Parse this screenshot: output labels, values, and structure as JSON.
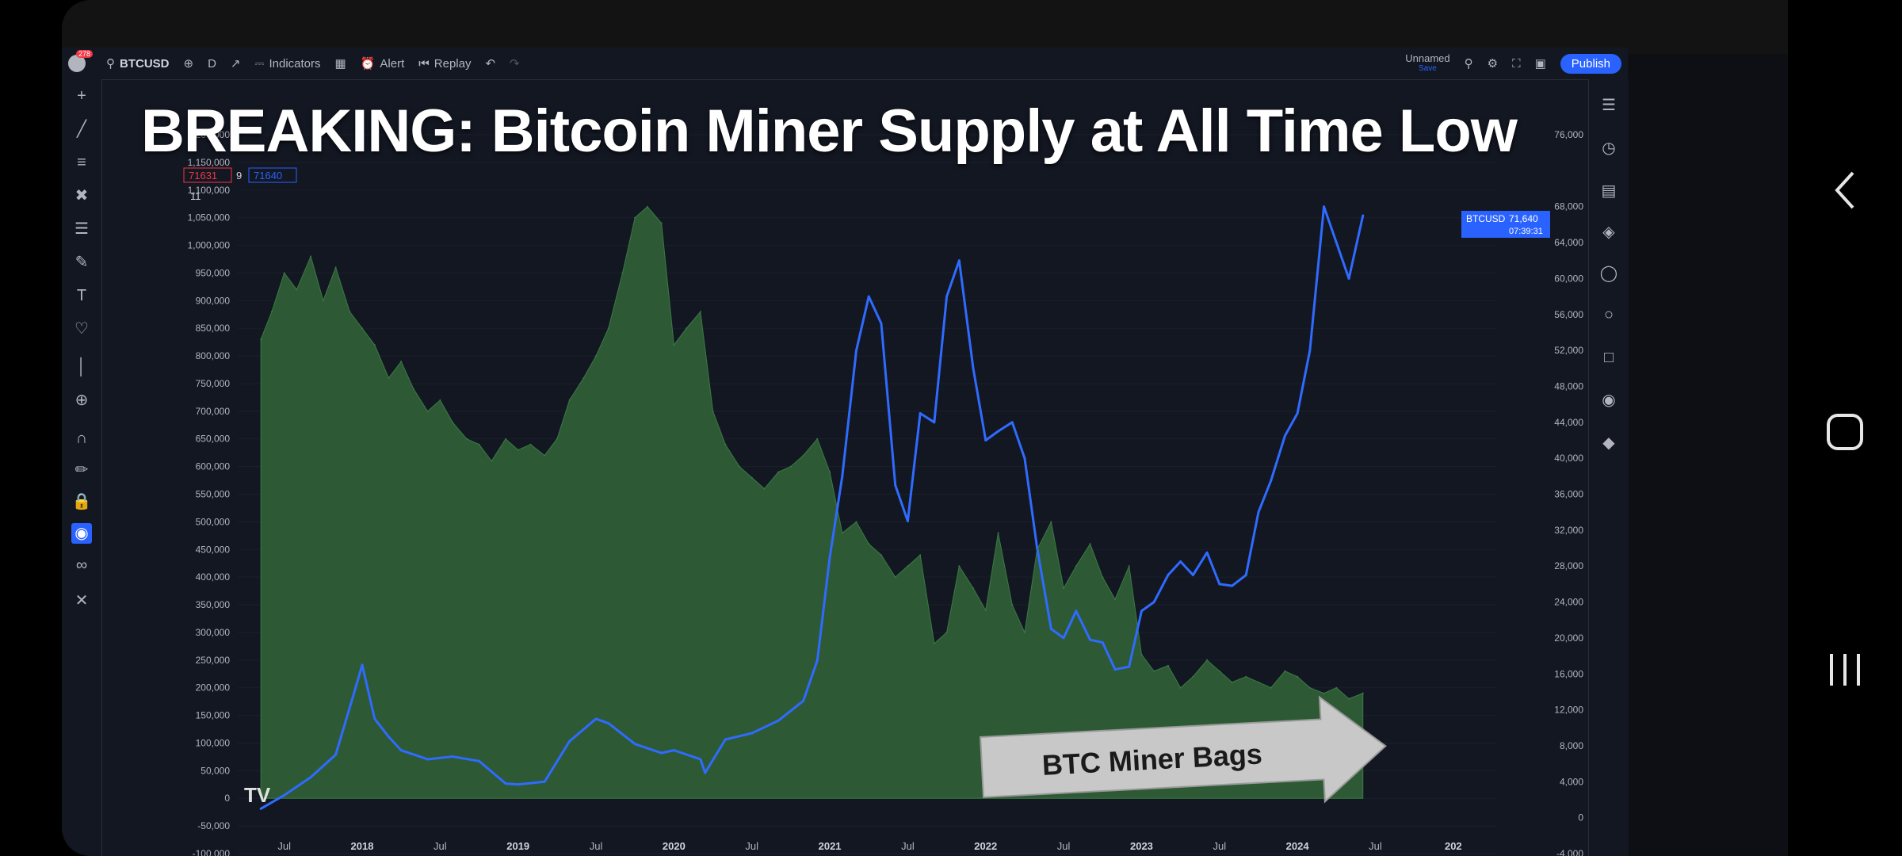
{
  "headline": "BREAKING: Bitcoin Miner Supply at All Time Low",
  "annotation": "BTC Miner Bags",
  "toolbar": {
    "symbol": "BTCUSD",
    "interval": "D",
    "indicators": "Indicators",
    "alert": "Alert",
    "replay": "Replay",
    "layout_name": "Unnamed",
    "layout_sub": "Save",
    "publish": "Publish",
    "logo_badge": "278"
  },
  "legend": {
    "price_a": "71631",
    "price_b": "9",
    "price_c": "71640",
    "count": "11"
  },
  "price_tag": {
    "symbol": "BTCUSD",
    "value": "71,640",
    "timer": "07:39:31"
  },
  "tradingview_logo": "TV",
  "colors": {
    "miner_fill": "#2d5a34",
    "price_line": "#2f6bff",
    "background": "#131722",
    "accent": "#2962ff"
  },
  "chart_data": {
    "type": "area",
    "left_axis_labels": [
      "1,200,000",
      "1,150,000",
      "1,100,000",
      "1,050,000",
      "1,000,000",
      "950,000",
      "900,000",
      "850,000",
      "800,000",
      "750,000",
      "700,000",
      "650,000",
      "600,000",
      "550,000",
      "500,000",
      "450,000",
      "400,000",
      "350,000",
      "300,000",
      "250,000",
      "200,000",
      "150,000",
      "100,000",
      "50,000",
      "0",
      "-50,000",
      "-100,000"
    ],
    "right_axis_labels": [
      "76,000",
      "68,000",
      "64,000",
      "60,000",
      "56,000",
      "52,000",
      "48,000",
      "44,000",
      "40,000",
      "36,000",
      "32,000",
      "28,000",
      "24,000",
      "20,000",
      "16,000",
      "12,000",
      "8,000",
      "4,000",
      "0",
      "-4,000"
    ],
    "x_labels": [
      "Jul",
      "2018",
      "Jul",
      "2019",
      "Jul",
      "2020",
      "Jul",
      "2021",
      "Jul",
      "2022",
      "Jul",
      "2023",
      "Jul",
      "2024",
      "Jul",
      "202"
    ],
    "ylim_left": [
      -100000,
      1200000
    ],
    "ylim_right": [
      -4000,
      76000
    ],
    "series": [
      {
        "type": "area",
        "axis": "left",
        "x": [
          2017.35,
          2017.42,
          2017.5,
          2017.58,
          2017.67,
          2017.75,
          2017.83,
          2017.92,
          2018.0,
          2018.08,
          2018.17,
          2018.25,
          2018.33,
          2018.42,
          2018.5,
          2018.58,
          2018.67,
          2018.75,
          2018.83,
          2018.92,
          2019.0,
          2019.08,
          2019.17,
          2019.25,
          2019.33,
          2019.42,
          2019.5,
          2019.58,
          2019.67,
          2019.75,
          2019.83,
          2019.92,
          2020.0,
          2020.08,
          2020.17,
          2020.25,
          2020.33,
          2020.42,
          2020.5,
          2020.58,
          2020.67,
          2020.75,
          2020.83,
          2020.92,
          2021.0,
          2021.08,
          2021.17,
          2021.25,
          2021.33,
          2021.42,
          2021.5,
          2021.58,
          2021.67,
          2021.75,
          2021.83,
          2021.92,
          2022.0,
          2022.08,
          2022.17,
          2022.25,
          2022.33,
          2022.42,
          2022.5,
          2022.58,
          2022.67,
          2022.75,
          2022.83,
          2022.92,
          2023.0,
          2023.08,
          2023.17,
          2023.25,
          2023.33,
          2023.42,
          2023.5,
          2023.58,
          2023.67,
          2023.75,
          2023.83,
          2023.92,
          2024.0,
          2024.08,
          2024.17,
          2024.25,
          2024.33,
          2024.42
        ],
        "values": [
          830000,
          880000,
          950000,
          920000,
          980000,
          900000,
          960000,
          880000,
          850000,
          820000,
          760000,
          790000,
          740000,
          700000,
          720000,
          680000,
          650000,
          640000,
          610000,
          650000,
          630000,
          640000,
          620000,
          650000,
          720000,
          760000,
          800000,
          850000,
          950000,
          1050000,
          1070000,
          1040000,
          820000,
          850000,
          880000,
          700000,
          640000,
          600000,
          580000,
          560000,
          590000,
          600000,
          620000,
          650000,
          590000,
          480000,
          500000,
          460000,
          440000,
          400000,
          420000,
          440000,
          280000,
          300000,
          420000,
          380000,
          340000,
          480000,
          350000,
          300000,
          450000,
          500000,
          380000,
          420000,
          460000,
          400000,
          360000,
          420000,
          260000,
          230000,
          240000,
          200000,
          220000,
          250000,
          230000,
          210000,
          220000,
          210000,
          200000,
          230000,
          220000,
          200000,
          190000,
          200000,
          180000,
          190000
        ]
      },
      {
        "type": "line",
        "axis": "right",
        "x": [
          2017.35,
          2017.5,
          2017.67,
          2017.83,
          2017.95,
          2018.0,
          2018.08,
          2018.17,
          2018.25,
          2018.42,
          2018.58,
          2018.75,
          2018.92,
          2019.0,
          2019.17,
          2019.33,
          2019.5,
          2019.58,
          2019.75,
          2019.92,
          2020.0,
          2020.17,
          2020.2,
          2020.33,
          2020.5,
          2020.67,
          2020.83,
          2020.92,
          2021.0,
          2021.08,
          2021.17,
          2021.25,
          2021.33,
          2021.42,
          2021.5,
          2021.58,
          2021.67,
          2021.75,
          2021.83,
          2021.92,
          2022.0,
          2022.08,
          2022.17,
          2022.25,
          2022.33,
          2022.42,
          2022.5,
          2022.58,
          2022.67,
          2022.75,
          2022.83,
          2022.92,
          2023.0,
          2023.08,
          2023.17,
          2023.25,
          2023.33,
          2023.42,
          2023.5,
          2023.58,
          2023.67,
          2023.75,
          2023.83,
          2023.92,
          2024.0,
          2024.08,
          2024.17,
          2024.25,
          2024.33,
          2024.42
        ],
        "values": [
          1000,
          2500,
          4500,
          7000,
          14000,
          17000,
          11000,
          9000,
          7500,
          6500,
          6800,
          6300,
          3800,
          3700,
          4000,
          8500,
          11000,
          10500,
          8200,
          7200,
          7500,
          6500,
          5000,
          8700,
          9400,
          10800,
          13000,
          17500,
          29000,
          38000,
          52000,
          58000,
          55000,
          37000,
          33000,
          45000,
          44000,
          58000,
          62000,
          50000,
          42000,
          43000,
          44000,
          40000,
          30000,
          21000,
          20000,
          23000,
          19800,
          19500,
          16500,
          16800,
          23000,
          24000,
          27000,
          28500,
          27000,
          29500,
          26000,
          25800,
          27000,
          34000,
          37500,
          42500,
          45000,
          52000,
          68000,
          64000,
          60000,
          67000
        ]
      }
    ]
  }
}
